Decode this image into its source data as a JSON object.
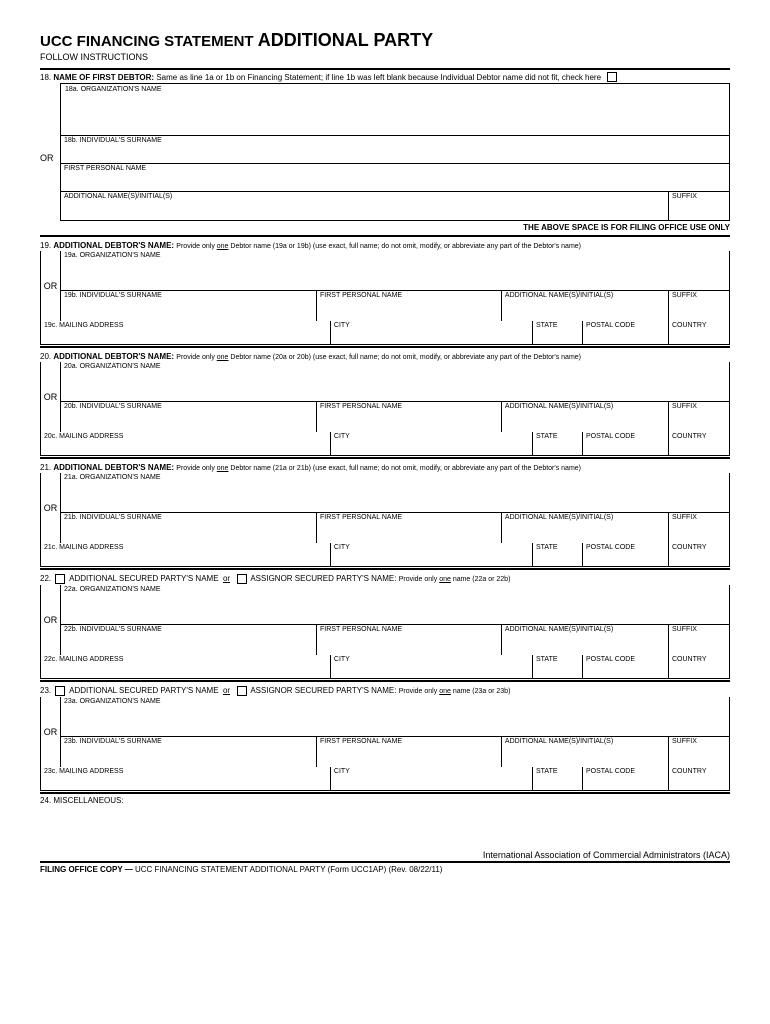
{
  "title_a": "UCC FINANCING STATEMENT",
  "title_b": "ADDITIONAL PARTY",
  "subtitle": "FOLLOW INSTRUCTIONS",
  "s18": {
    "hdr_num": "18.",
    "hdr_b": "NAME OF FIRST DEBTOR:",
    "hdr_txt": "Same as line 1a or 1b on Financing Statement; if line 1b was left blank because Individual Debtor name did not fit, check here",
    "a": "18a. ORGANIZATION'S NAME",
    "b": "18b. INDIVIDUAL'S SURNAME",
    "fpn": "FIRST PERSONAL NAME",
    "add": "ADDITIONAL NAME(S)/INITIAL(S)",
    "sfx": "SUFFIX"
  },
  "filing_note": "THE ABOVE SPACE IS FOR FILING OFFICE USE ONLY",
  "or": "OR",
  "debtor_hdr_b": "ADDITIONAL DEBTOR'S NAME:",
  "debtor_hdr_n": "Provide only one Debtor name ({A} or {B}) (use exact, full name; do not omit, modify, or abbreviate any part of the Debtor's name)",
  "sp_a": "ADDITIONAL SECURED PARTY'S NAME",
  "sp_or": "or",
  "sp_b": "ASSIGNOR SECURED PARTY'S NAME:",
  "sp_n": "Provide only one name ({A} or {B})",
  "lbl": {
    "org": "ORGANIZATION'S NAME",
    "sur": "INDIVIDUAL'S SURNAME",
    "fpn": "FIRST PERSONAL NAME",
    "add": "ADDITIONAL NAME(S)/INITIAL(S)",
    "sfx": "SUFFIX",
    "mail": "MAILING ADDRESS",
    "city": "CITY",
    "state": "STATE",
    "postal": "POSTAL CODE",
    "country": "COUNTRY"
  },
  "s19": {
    "n": "19",
    "a": "19a",
    "b": "19b",
    "c": "19c"
  },
  "s20": {
    "n": "20",
    "a": "20a",
    "b": "20b",
    "c": "20c"
  },
  "s21": {
    "n": "21",
    "a": "21a",
    "b": "21b",
    "c": "21c"
  },
  "s22": {
    "n": "22",
    "a": "22a",
    "b": "22b",
    "c": "22c"
  },
  "s23": {
    "n": "23",
    "a": "23a",
    "b": "23b",
    "c": "23c"
  },
  "s24": "24. MISCELLANEOUS:",
  "footer_org": "International Association of Commercial Administrators (IACA)",
  "footer_a": "FILING OFFICE COPY —",
  "footer_b": "UCC FINANCING STATEMENT ADDITIONAL PARTY (Form UCC1AP) (Rev. 08/22/11)"
}
